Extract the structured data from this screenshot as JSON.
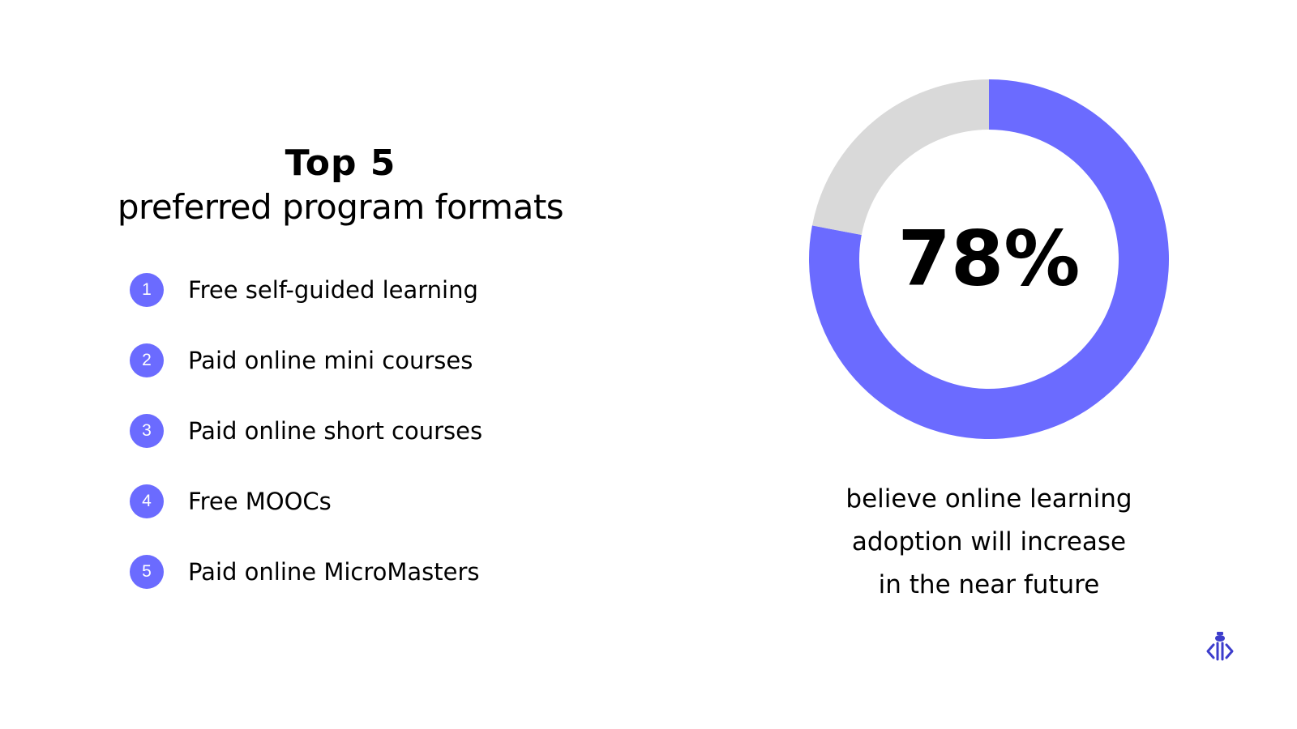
{
  "heading": {
    "title": "Top 5",
    "subtitle": "preferred program formats"
  },
  "formats": [
    {
      "rank": "1",
      "label": "Free self-guided learning"
    },
    {
      "rank": "2",
      "label": "Paid online mini courses"
    },
    {
      "rank": "3",
      "label": "Paid online short courses"
    },
    {
      "rank": "4",
      "label": "Free MOOCs"
    },
    {
      "rank": "5",
      "label": "Paid online MicroMasters"
    }
  ],
  "chart_data": {
    "type": "pie",
    "variant": "donut",
    "center_label": "78%",
    "slices": [
      {
        "value": 78,
        "color": "#6b6bff"
      },
      {
        "value": 22,
        "color": "#d9d9d9"
      }
    ],
    "caption_lines": [
      "believe online learning",
      "adoption will increase",
      "in the near future"
    ]
  },
  "colors": {
    "accent": "#6b6bff",
    "remainder": "#d9d9d9",
    "text": "#000000",
    "logo": "#3d3dcc"
  },
  "icons": {
    "brand": "brand-logo-icon"
  }
}
